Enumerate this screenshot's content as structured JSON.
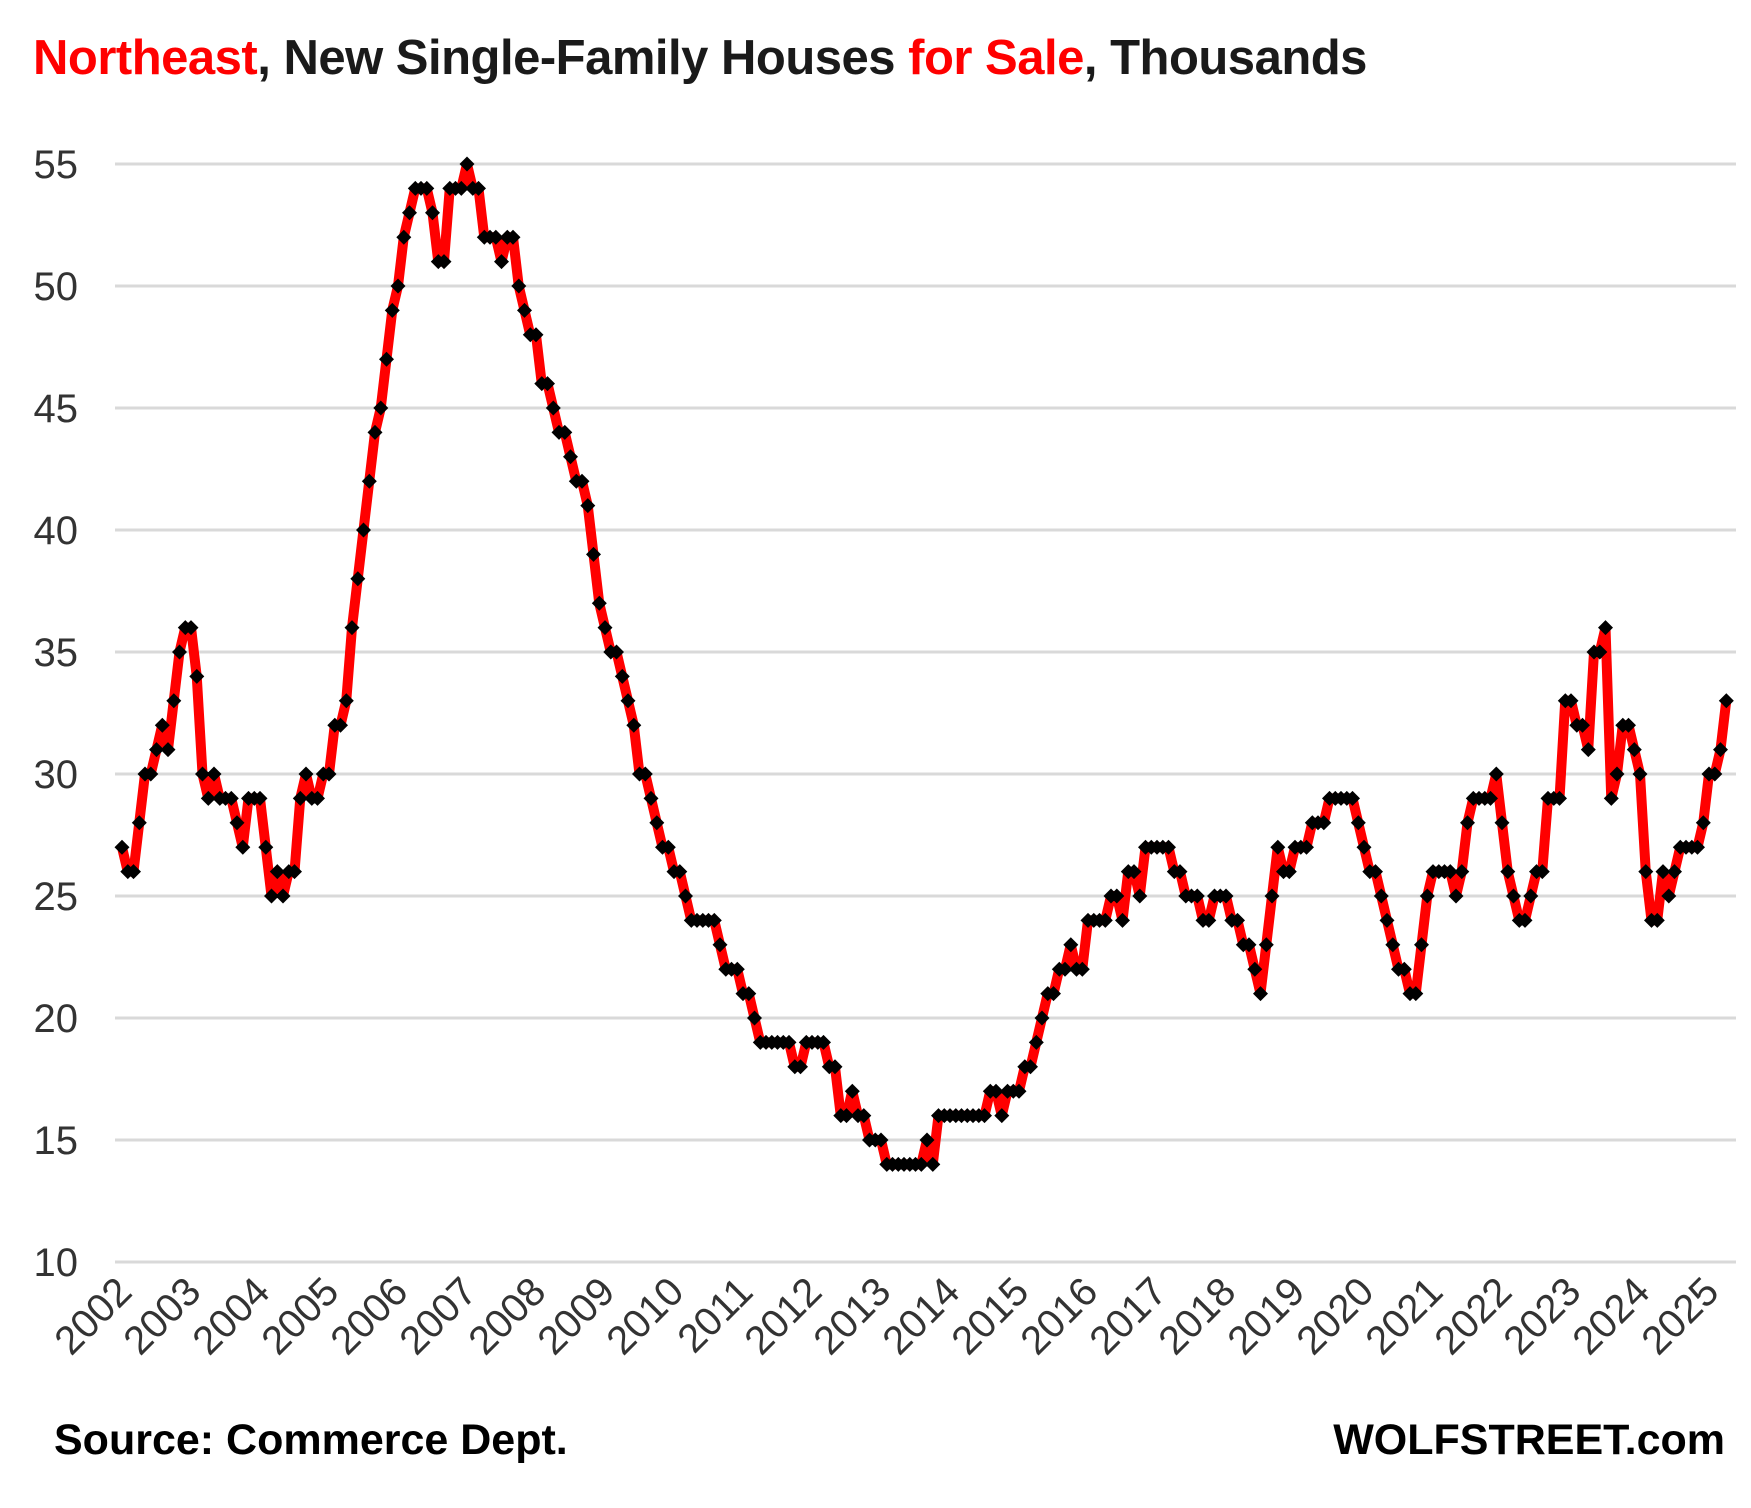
{
  "page": {
    "background": "#ffffff"
  },
  "title": {
    "parts": [
      {
        "text": "Northeast",
        "color": "#ff0000"
      },
      {
        "text": ", New Single-Family Houses ",
        "color": "#1a1a1a"
      },
      {
        "text": "for Sale",
        "color": "#ff0000"
      },
      {
        "text": ", Thousands",
        "color": "#1a1a1a"
      }
    ]
  },
  "footer": {
    "source_label": "Source: Commerce Dept.",
    "brand_label": "WOLFSTREET.com"
  },
  "chart_data": {
    "type": "line",
    "title": "Northeast, New Single-Family Houses for Sale, Thousands",
    "unit": "thousands of houses",
    "frequency": "monthly",
    "x_start": "2002-01",
    "x_end": "2025-04",
    "x_tick_labels": [
      "2002",
      "2003",
      "2004",
      "2005",
      "2006",
      "2007",
      "2008",
      "2009",
      "2010",
      "2011",
      "2012",
      "2013",
      "2014",
      "2015",
      "2016",
      "2017",
      "2018",
      "2019",
      "2020",
      "2021",
      "2022",
      "2023",
      "2024",
      "2025"
    ],
    "y_ticks": [
      55,
      50,
      45,
      40,
      35,
      30,
      25,
      20,
      15,
      10
    ],
    "ylim": [
      10,
      57
    ],
    "grid": "horizontal",
    "legend_position": "none",
    "line_color": "#ff0000",
    "marker_shape": "diamond",
    "marker_color": "#000000",
    "gridline_color": "#d9d9d9",
    "tick_label_color": "#333333",
    "series": [
      {
        "name": "New single-family houses for sale, Northeast",
        "values": [
          27,
          26,
          26,
          28,
          30,
          30,
          31,
          32,
          31,
          33,
          35,
          36,
          36,
          34,
          30,
          29,
          30,
          29,
          29,
          29,
          28,
          27,
          29,
          29,
          29,
          27,
          25,
          26,
          25,
          26,
          26,
          29,
          30,
          29,
          29,
          30,
          30,
          32,
          32,
          33,
          36,
          38,
          40,
          42,
          44,
          45,
          47,
          49,
          50,
          52,
          53,
          54,
          54,
          54,
          53,
          51,
          51,
          54,
          54,
          54,
          55,
          54,
          54,
          52,
          52,
          52,
          51,
          52,
          52,
          50,
          49,
          48,
          48,
          46,
          46,
          45,
          44,
          44,
          43,
          42,
          42,
          41,
          39,
          37,
          36,
          35,
          35,
          34,
          33,
          32,
          30,
          30,
          29,
          28,
          27,
          27,
          26,
          26,
          25,
          24,
          24,
          24,
          24,
          24,
          23,
          22,
          22,
          22,
          21,
          21,
          20,
          19,
          19,
          19,
          19,
          19,
          19,
          18,
          18,
          19,
          19,
          19,
          19,
          18,
          18,
          16,
          16,
          17,
          16,
          16,
          15,
          15,
          15,
          14,
          14,
          14,
          14,
          14,
          14,
          14,
          15,
          14,
          16,
          16,
          16,
          16,
          16,
          16,
          16,
          16,
          16,
          17,
          17,
          16,
          17,
          17,
          17,
          18,
          18,
          19,
          20,
          21,
          21,
          22,
          22,
          23,
          22,
          22,
          24,
          24,
          24,
          24,
          25,
          25,
          24,
          26,
          26,
          25,
          27,
          27,
          27,
          27,
          27,
          26,
          26,
          25,
          25,
          25,
          24,
          24,
          25,
          25,
          25,
          24,
          24,
          23,
          23,
          22,
          21,
          23,
          25,
          27,
          26,
          26,
          27,
          27,
          27,
          28,
          28,
          28,
          29,
          29,
          29,
          29,
          29,
          28,
          27,
          26,
          26,
          25,
          24,
          23,
          22,
          22,
          21,
          21,
          23,
          25,
          26,
          26,
          26,
          26,
          25,
          26,
          28,
          29,
          29,
          29,
          29,
          30,
          28,
          26,
          25,
          24,
          24,
          25,
          26,
          26,
          29,
          29,
          29,
          33,
          33,
          32,
          32,
          31,
          35,
          35,
          36,
          29,
          30,
          32,
          32,
          31,
          30,
          26,
          24,
          24,
          26,
          25,
          26,
          27,
          27,
          27,
          27,
          28,
          30,
          30,
          31,
          33
        ]
      }
    ]
  }
}
